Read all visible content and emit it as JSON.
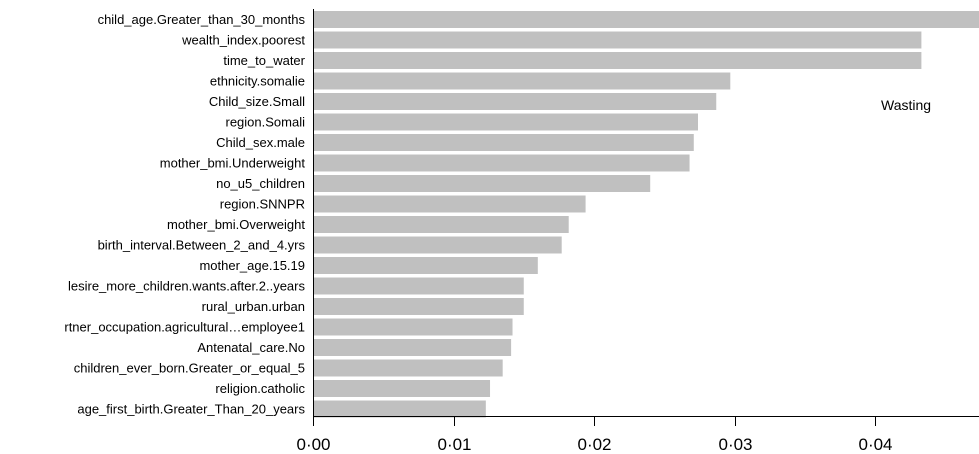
{
  "chart_data": {
    "type": "bar",
    "orientation": "horizontal",
    "categories": [
      "child_age.Greater_than_30_months",
      "wealth_index.poorest",
      "time_to_water",
      "ethnicity.somalie",
      "Child_size.Small",
      "region.Somali",
      "Child_sex.male",
      "mother_bmi.Underweight",
      "no_u5_children",
      "region.SNNPR",
      "mother_bmi.Overweight",
      "birth_interval.Between_2_and_4.yrs",
      "mother_age.15.19",
      "lesire_more_children.wants.after.2..years",
      "rural_urban.urban",
      "rtner_occupation.agricultural…employee1",
      "Antenatal_care.No",
      "children_ever_born.Greater_or_equal_5",
      "religion.catholic",
      "age_first_birth.Greater_Than_20_years"
    ],
    "series": [
      {
        "name": "Wasting",
        "values": [
          0.0474,
          0.0433,
          0.0433,
          0.0297,
          0.0287,
          0.0274,
          0.0271,
          0.0268,
          0.024,
          0.0194,
          0.0182,
          0.0177,
          0.016,
          0.015,
          0.015,
          0.0142,
          0.0141,
          0.0135,
          0.0126,
          0.0123
        ]
      }
    ],
    "xlim": [
      0,
      0.0474
    ],
    "xticks": [
      "0·00",
      "0·01",
      "0·02",
      "0·03",
      "0·04"
    ],
    "xtick_values": [
      0,
      0.01,
      0.02,
      0.03,
      0.04
    ],
    "legend": {
      "text": "Wasting",
      "placement": "top-right"
    },
    "bar_color": "#c0c0c0",
    "grid": false
  }
}
